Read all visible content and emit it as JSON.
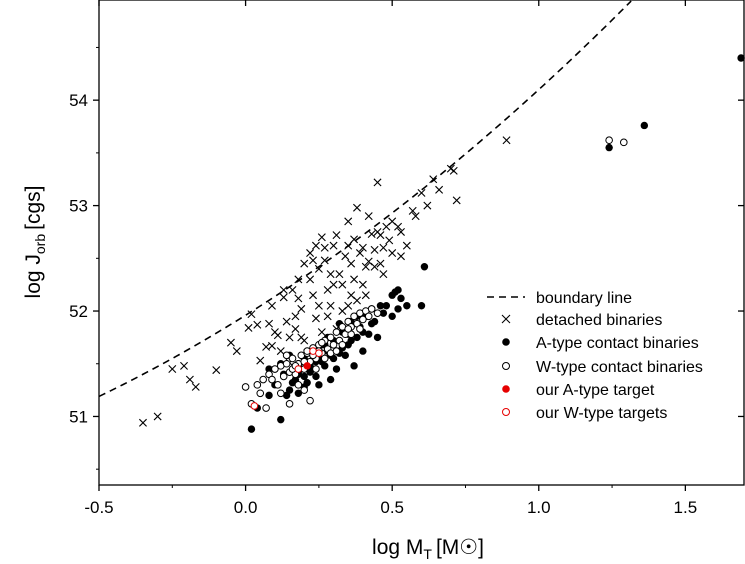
{
  "chart_data": {
    "type": "scatter",
    "title": "",
    "xlabel": {
      "main": "log M",
      "sub": "T",
      "unit": "[M☉]"
    },
    "ylabel": {
      "main": "log J",
      "sub": "orb",
      "unit": "[cgs]"
    },
    "xlim": [
      -0.5,
      1.7
    ],
    "ylim": [
      50.35,
      54.95
    ],
    "xticks": [
      -0.5,
      0.0,
      0.5,
      1.0,
      1.5
    ],
    "xtick_labels": [
      "-0.5",
      "0.0",
      "0.5",
      "1.0",
      "1.5"
    ],
    "yticks": [
      51,
      52,
      53,
      54
    ],
    "ytick_labels": [
      "51",
      "52",
      "53",
      "54"
    ],
    "grid": false,
    "legend_position": "lower-right",
    "boundary_line": {
      "name": "boundary line",
      "style": "dashed",
      "color": "#000000",
      "x_range": [
        -0.5,
        1.48
      ]
    },
    "series": [
      {
        "name": "detached binaries",
        "marker": "x",
        "color": "#000000",
        "points": [
          [
            -0.35,
            50.94
          ],
          [
            -0.3,
            51.0
          ],
          [
            -0.25,
            51.45
          ],
          [
            -0.21,
            51.48
          ],
          [
            -0.19,
            51.35
          ],
          [
            -0.17,
            51.28
          ],
          [
            -0.1,
            51.44
          ],
          [
            -0.05,
            51.7
          ],
          [
            -0.03,
            51.62
          ],
          [
            0.01,
            51.84
          ],
          [
            0.02,
            51.97
          ],
          [
            0.04,
            51.87
          ],
          [
            0.05,
            51.53
          ],
          [
            0.07,
            51.66
          ],
          [
            0.08,
            51.88
          ],
          [
            0.09,
            52.05
          ],
          [
            0.1,
            51.8
          ],
          [
            0.11,
            51.77
          ],
          [
            0.13,
            52.13
          ],
          [
            0.14,
            51.9
          ],
          [
            0.15,
            51.51
          ],
          [
            0.16,
            52.2
          ],
          [
            0.17,
            51.95
          ],
          [
            0.17,
            51.83
          ],
          [
            0.18,
            52.3
          ],
          [
            0.19,
            51.75
          ],
          [
            0.19,
            52.02
          ],
          [
            0.2,
            52.45
          ],
          [
            0.21,
            51.6
          ],
          [
            0.22,
            52.55
          ],
          [
            0.22,
            52.3
          ],
          [
            0.23,
            52.15
          ],
          [
            0.24,
            51.93
          ],
          [
            0.25,
            52.4
          ],
          [
            0.26,
            52.7
          ],
          [
            0.27,
            52.6
          ],
          [
            0.28,
            52.2
          ],
          [
            0.29,
            52.05
          ],
          [
            0.3,
            52.62
          ],
          [
            0.31,
            51.83
          ],
          [
            0.32,
            52.35
          ],
          [
            0.33,
            52.25
          ],
          [
            0.34,
            52.52
          ],
          [
            0.35,
            52.85
          ],
          [
            0.35,
            52.05
          ],
          [
            0.36,
            52.45
          ],
          [
            0.37,
            52.3
          ],
          [
            0.38,
            52.1
          ],
          [
            0.39,
            52.55
          ],
          [
            0.4,
            52.25
          ],
          [
            0.41,
            52.15
          ],
          [
            0.42,
            52.47
          ],
          [
            0.43,
            52.73
          ],
          [
            0.44,
            52.58
          ],
          [
            0.45,
            52.75
          ],
          [
            0.46,
            52.45
          ],
          [
            0.47,
            52.6
          ],
          [
            0.48,
            52.8
          ],
          [
            0.5,
            52.85
          ],
          [
            0.52,
            52.8
          ],
          [
            0.53,
            52.75
          ],
          [
            0.55,
            52.62
          ],
          [
            0.57,
            52.95
          ],
          [
            0.58,
            52.9
          ],
          [
            0.6,
            53.12
          ],
          [
            0.62,
            53.0
          ],
          [
            0.64,
            53.25
          ],
          [
            0.66,
            53.15
          ],
          [
            0.7,
            53.35
          ],
          [
            0.71,
            53.33
          ],
          [
            0.72,
            53.05
          ],
          [
            0.89,
            53.62
          ],
          [
            0.45,
            53.22
          ],
          [
            0.38,
            52.98
          ],
          [
            0.27,
            52.48
          ],
          [
            0.24,
            52.62
          ],
          [
            0.31,
            52.72
          ],
          [
            0.41,
            52.42
          ],
          [
            0.49,
            52.67
          ],
          [
            0.36,
            52.15
          ],
          [
            0.28,
            51.95
          ],
          [
            0.33,
            52.0
          ],
          [
            0.13,
            52.2
          ],
          [
            0.09,
            51.67
          ],
          [
            0.12,
            51.62
          ],
          [
            0.15,
            51.75
          ],
          [
            0.18,
            52.12
          ],
          [
            0.47,
            52.35
          ],
          [
            0.5,
            52.55
          ],
          [
            0.4,
            52.6
          ],
          [
            0.3,
            52.25
          ],
          [
            0.25,
            52.05
          ],
          [
            0.2,
            51.72
          ],
          [
            0.44,
            52.42
          ],
          [
            0.35,
            52.62
          ],
          [
            0.46,
            52.72
          ],
          [
            0.53,
            52.52
          ],
          [
            0.23,
            52.48
          ],
          [
            0.29,
            52.35
          ],
          [
            0.42,
            52.9
          ],
          [
            0.37,
            52.68
          ],
          [
            0.32,
            51.85
          ],
          [
            0.26,
            51.8
          ]
        ]
      },
      {
        "name": "A-type contact binaries",
        "marker": "filled-circle",
        "color": "#000000",
        "points": [
          [
            0.02,
            50.88
          ],
          [
            0.04,
            51.08
          ],
          [
            0.08,
            51.2
          ],
          [
            0.08,
            51.45
          ],
          [
            0.1,
            51.3
          ],
          [
            0.12,
            50.97
          ],
          [
            0.12,
            51.5
          ],
          [
            0.13,
            51.4
          ],
          [
            0.15,
            51.25
          ],
          [
            0.15,
            51.58
          ],
          [
            0.17,
            51.35
          ],
          [
            0.18,
            51.5
          ],
          [
            0.18,
            51.22
          ],
          [
            0.19,
            51.45
          ],
          [
            0.2,
            51.55
          ],
          [
            0.2,
            51.28
          ],
          [
            0.22,
            51.5
          ],
          [
            0.23,
            51.6
          ],
          [
            0.24,
            51.38
          ],
          [
            0.25,
            51.55
          ],
          [
            0.26,
            51.68
          ],
          [
            0.27,
            51.48
          ],
          [
            0.28,
            51.62
          ],
          [
            0.29,
            51.35
          ],
          [
            0.3,
            51.55
          ],
          [
            0.3,
            51.72
          ],
          [
            0.31,
            51.45
          ],
          [
            0.32,
            51.6
          ],
          [
            0.33,
            51.8
          ],
          [
            0.34,
            51.58
          ],
          [
            0.35,
            51.68
          ],
          [
            0.36,
            51.9
          ],
          [
            0.37,
            51.48
          ],
          [
            0.38,
            51.75
          ],
          [
            0.39,
            51.85
          ],
          [
            0.4,
            51.62
          ],
          [
            0.41,
            51.95
          ],
          [
            0.42,
            51.78
          ],
          [
            0.43,
            52.02
          ],
          [
            0.44,
            51.9
          ],
          [
            0.45,
            51.75
          ],
          [
            0.46,
            52.05
          ],
          [
            0.48,
            52.05
          ],
          [
            0.5,
            52.15
          ],
          [
            0.51,
            52.18
          ],
          [
            0.52,
            52.2
          ],
          [
            0.5,
            51.95
          ],
          [
            0.52,
            52.02
          ],
          [
            0.55,
            52.05
          ],
          [
            0.6,
            52.05
          ],
          [
            0.61,
            52.42
          ],
          [
            1.24,
            53.55
          ],
          [
            1.36,
            53.76
          ],
          [
            1.69,
            54.4
          ],
          [
            0.28,
            51.75
          ],
          [
            0.33,
            51.65
          ],
          [
            0.22,
            51.42
          ],
          [
            0.25,
            51.3
          ],
          [
            0.16,
            51.32
          ],
          [
            0.14,
            51.2
          ],
          [
            0.26,
            51.52
          ],
          [
            0.35,
            51.78
          ],
          [
            0.31,
            51.62
          ],
          [
            0.38,
            51.95
          ],
          [
            0.2,
            51.38
          ],
          [
            0.24,
            51.52
          ],
          [
            0.29,
            51.58
          ],
          [
            0.36,
            51.72
          ],
          [
            0.1,
            51.45
          ],
          [
            0.18,
            51.4
          ],
          [
            0.27,
            51.68
          ],
          [
            0.32,
            51.88
          ],
          [
            0.4,
            51.8
          ],
          [
            0.43,
            51.88
          ],
          [
            0.47,
            51.98
          ],
          [
            0.53,
            52.12
          ],
          [
            0.23,
            51.45
          ],
          [
            0.21,
            51.32
          ]
        ]
      },
      {
        "name": "W-type contact binaries",
        "marker": "open-circle",
        "color": "#000000",
        "points": [
          [
            0.0,
            51.28
          ],
          [
            0.02,
            51.12
          ],
          [
            0.04,
            51.3
          ],
          [
            0.05,
            51.22
          ],
          [
            0.06,
            51.35
          ],
          [
            0.07,
            51.08
          ],
          [
            0.08,
            51.4
          ],
          [
            0.1,
            51.45
          ],
          [
            0.11,
            51.3
          ],
          [
            0.12,
            51.48
          ],
          [
            0.13,
            51.38
          ],
          [
            0.14,
            51.5
          ],
          [
            0.15,
            51.42
          ],
          [
            0.15,
            51.12
          ],
          [
            0.16,
            51.55
          ],
          [
            0.17,
            51.4
          ],
          [
            0.18,
            51.5
          ],
          [
            0.19,
            51.58
          ],
          [
            0.2,
            51.45
          ],
          [
            0.2,
            51.25
          ],
          [
            0.21,
            51.6
          ],
          [
            0.22,
            51.15
          ],
          [
            0.22,
            51.52
          ],
          [
            0.23,
            51.65
          ],
          [
            0.24,
            51.55
          ],
          [
            0.25,
            51.68
          ],
          [
            0.26,
            51.6
          ],
          [
            0.27,
            51.72
          ],
          [
            0.28,
            51.64
          ],
          [
            0.29,
            51.75
          ],
          [
            0.3,
            51.68
          ],
          [
            0.31,
            51.8
          ],
          [
            0.32,
            51.72
          ],
          [
            0.33,
            51.85
          ],
          [
            0.34,
            51.78
          ],
          [
            0.35,
            51.9
          ],
          [
            0.36,
            51.85
          ],
          [
            0.37,
            51.95
          ],
          [
            0.38,
            51.88
          ],
          [
            0.39,
            51.98
          ],
          [
            0.4,
            51.92
          ],
          [
            0.41,
            52.0
          ],
          [
            0.42,
            51.95
          ],
          [
            0.43,
            52.02
          ],
          [
            0.45,
            51.98
          ],
          [
            0.24,
            51.45
          ],
          [
            0.27,
            51.55
          ],
          [
            0.18,
            51.3
          ],
          [
            0.12,
            51.22
          ],
          [
            0.09,
            51.35
          ],
          [
            0.16,
            51.45
          ],
          [
            0.21,
            51.62
          ],
          [
            0.29,
            51.6
          ],
          [
            0.33,
            51.68
          ],
          [
            0.36,
            51.78
          ],
          [
            0.39,
            51.83
          ],
          [
            1.24,
            53.62
          ],
          [
            1.29,
            53.6
          ],
          [
            0.14,
            51.58
          ],
          [
            0.25,
            51.62
          ],
          [
            0.31,
            51.62
          ],
          [
            0.35,
            51.83
          ],
          [
            0.2,
            51.52
          ],
          [
            0.17,
            51.48
          ],
          [
            0.26,
            51.7
          ],
          [
            0.23,
            51.58
          ]
        ]
      },
      {
        "name": "our A-type target",
        "marker": "filled-circle",
        "color": "#e60000",
        "points": [
          [
            0.21,
            51.48
          ]
        ]
      },
      {
        "name": "our W-type targets",
        "marker": "open-circle",
        "color": "#e60000",
        "points": [
          [
            0.03,
            51.1
          ],
          [
            0.18,
            51.45
          ],
          [
            0.23,
            51.62
          ],
          [
            0.25,
            51.6
          ]
        ]
      }
    ]
  }
}
